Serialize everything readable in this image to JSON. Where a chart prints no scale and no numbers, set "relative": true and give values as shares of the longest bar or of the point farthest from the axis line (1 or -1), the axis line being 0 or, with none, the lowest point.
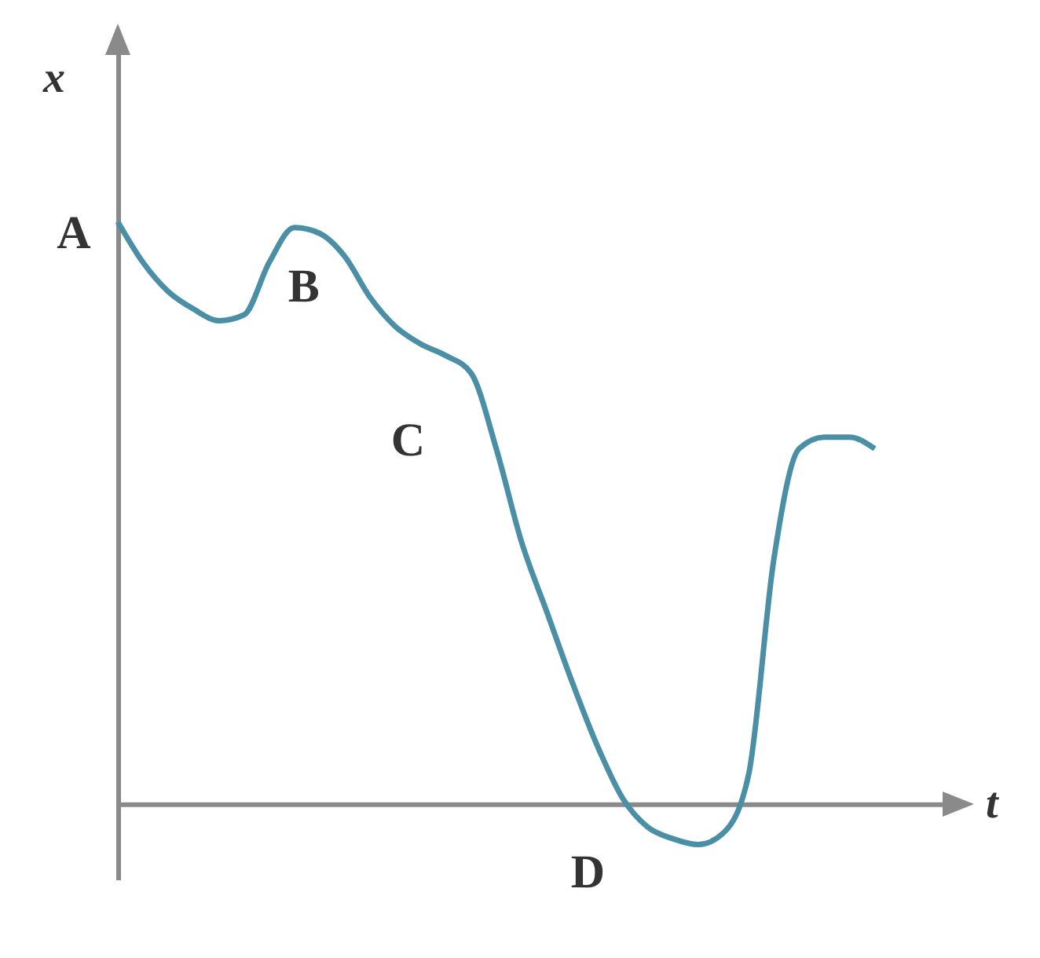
{
  "chart_data": {
    "type": "line",
    "relative": true,
    "xlabel": "t",
    "ylabel": "x",
    "color": "#4a8fa6",
    "categories": [
      null,
      null,
      null,
      null,
      null,
      null,
      null,
      null,
      null,
      null,
      null,
      null,
      null,
      null,
      null,
      null,
      null,
      null,
      null,
      null,
      null,
      null,
      null,
      null,
      null,
      null,
      null,
      null,
      null,
      null,
      null
    ],
    "values": [
      1.0,
      0.93,
      0.88,
      0.85,
      0.83,
      0.84,
      0.93,
      0.99,
      0.98,
      0.94,
      0.87,
      0.82,
      0.79,
      0.77,
      0.74,
      0.61,
      0.45,
      0.33,
      0.21,
      0.1,
      0.01,
      -0.04,
      -0.06,
      -0.07,
      -0.05,
      0.05,
      0.42,
      0.61,
      0.63,
      0.63,
      0.61
    ],
    "annotations": [
      "A",
      "B",
      "C",
      "D"
    ]
  }
}
